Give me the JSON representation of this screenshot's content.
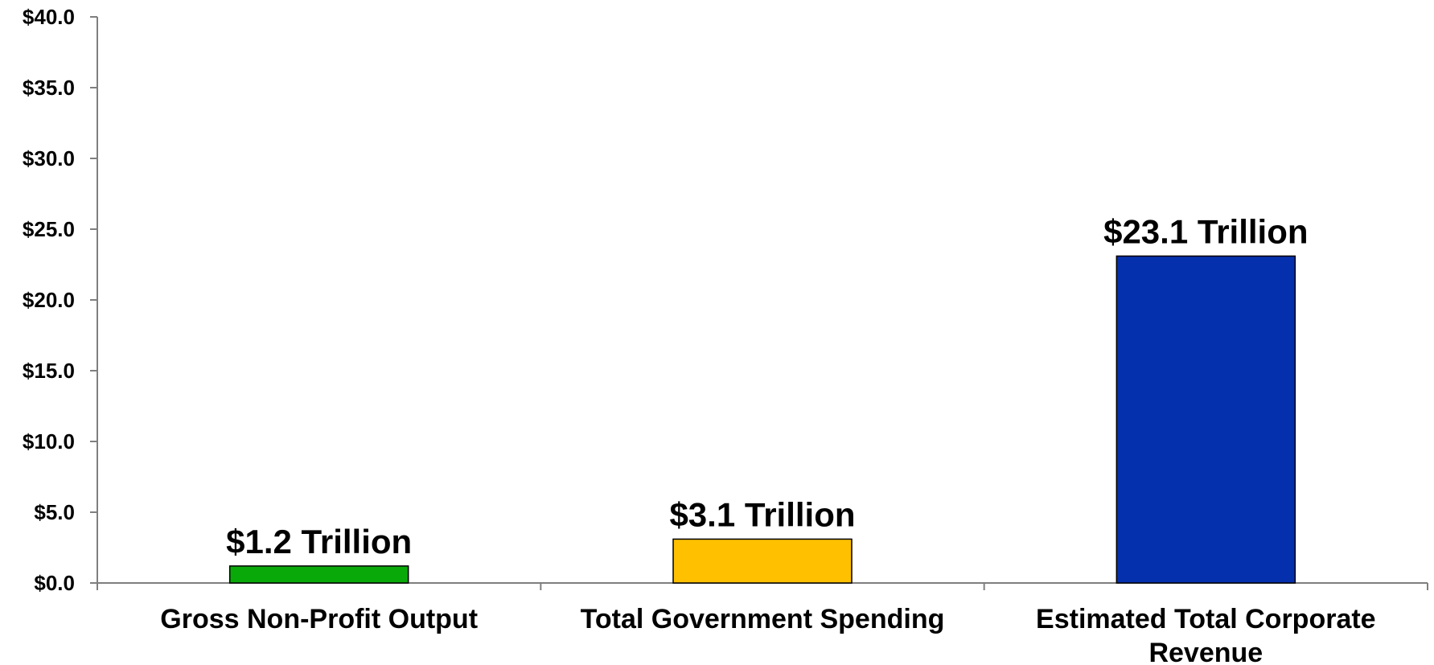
{
  "chart_data": {
    "type": "bar",
    "title": "",
    "xlabel": "",
    "ylabel": "",
    "ylim": [
      0,
      40
    ],
    "y_ticks": [
      "$0.0",
      "$5.0",
      "$10.0",
      "$15.0",
      "$20.0",
      "$25.0",
      "$30.0",
      "$35.0",
      "$40.0"
    ],
    "categories": [
      [
        "Gross Non-Profit Output"
      ],
      [
        "Total Government Spending"
      ],
      [
        "Estimated Total Corporate",
        "Revenue"
      ]
    ],
    "values": [
      1.2,
      3.1,
      23.1
    ],
    "data_labels": [
      "$1.2 Trillion",
      "$3.1 Trillion",
      "$23.1 Trillion"
    ],
    "colors": [
      "#0aa90a",
      "#ffc000",
      "#0530ad"
    ],
    "grid": false,
    "legend": "none"
  }
}
